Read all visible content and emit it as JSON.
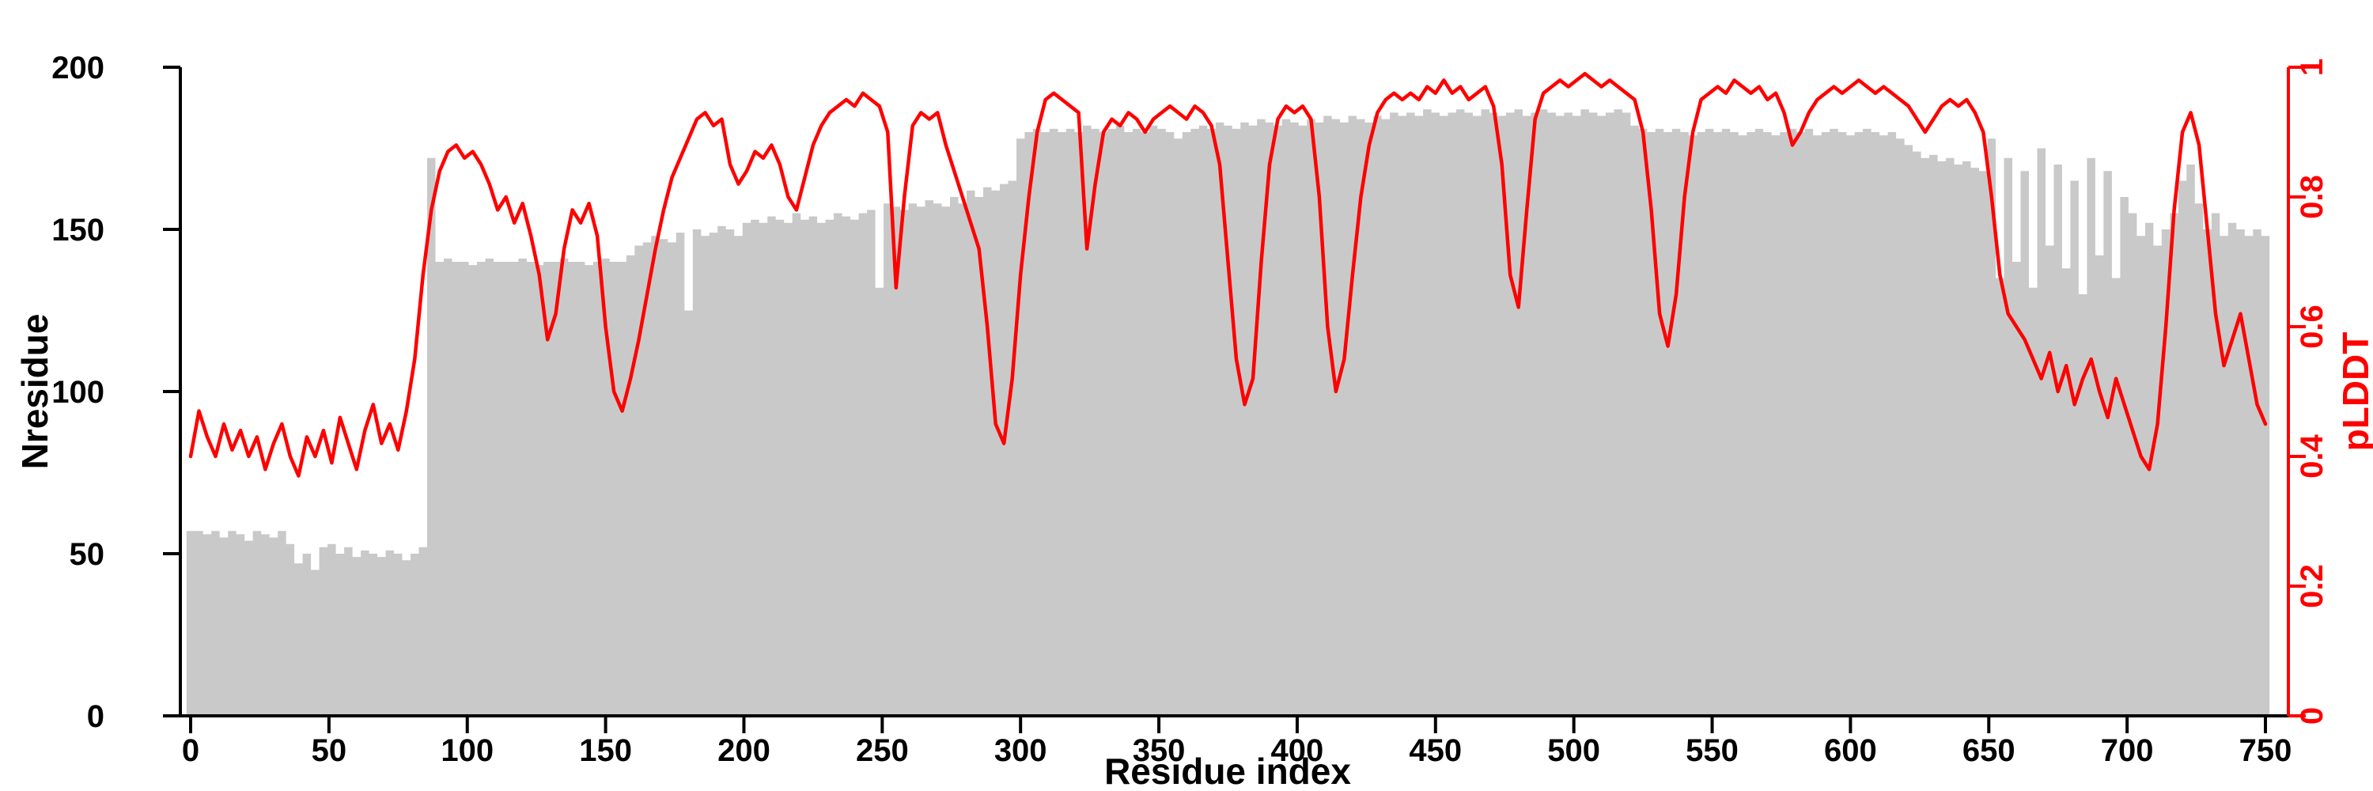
{
  "figure": {
    "background": "#ffffff",
    "bar_color": "#c9c9c9",
    "line_color": "#ff0000",
    "axis_color": "#000000"
  },
  "chart_data": {
    "type": "line",
    "title": "",
    "xlabel": "Residue index",
    "ylabel_left": "Nresidue",
    "ylabel_right": "pLDDT",
    "xlim": [
      0,
      750
    ],
    "ylim_left": [
      0,
      200
    ],
    "ylim_right": [
      0,
      1
    ],
    "grid": false,
    "legend": "none",
    "x_ticks": [
      0,
      50,
      100,
      150,
      200,
      250,
      300,
      350,
      400,
      450,
      500,
      550,
      600,
      650,
      700,
      750
    ],
    "y_ticks_left": [
      0,
      50,
      100,
      150,
      200
    ],
    "y_ticks_right": [
      0,
      0.2,
      0.4,
      0.6,
      0.8,
      1
    ],
    "x_step": 3,
    "x": [
      0,
      3,
      6,
      9,
      12,
      15,
      18,
      21,
      24,
      27,
      30,
      33,
      36,
      39,
      42,
      45,
      48,
      51,
      54,
      57,
      60,
      63,
      66,
      69,
      72,
      75,
      78,
      81,
      84,
      87,
      90,
      93,
      96,
      99,
      102,
      105,
      108,
      111,
      114,
      117,
      120,
      123,
      126,
      129,
      132,
      135,
      138,
      141,
      144,
      147,
      150,
      153,
      156,
      159,
      162,
      165,
      168,
      171,
      174,
      177,
      180,
      183,
      186,
      189,
      192,
      195,
      198,
      201,
      204,
      207,
      210,
      213,
      216,
      219,
      222,
      225,
      228,
      231,
      234,
      237,
      240,
      243,
      246,
      249,
      252,
      255,
      258,
      261,
      264,
      267,
      270,
      273,
      276,
      279,
      282,
      285,
      288,
      291,
      294,
      297,
      300,
      303,
      306,
      309,
      312,
      315,
      318,
      321,
      324,
      327,
      330,
      333,
      336,
      339,
      342,
      345,
      348,
      351,
      354,
      357,
      360,
      363,
      366,
      369,
      372,
      375,
      378,
      381,
      384,
      387,
      390,
      393,
      396,
      399,
      402,
      405,
      408,
      411,
      414,
      417,
      420,
      423,
      426,
      429,
      432,
      435,
      438,
      441,
      444,
      447,
      450,
      453,
      456,
      459,
      462,
      465,
      468,
      471,
      474,
      477,
      480,
      483,
      486,
      489,
      492,
      495,
      498,
      501,
      504,
      507,
      510,
      513,
      516,
      519,
      522,
      525,
      528,
      531,
      534,
      537,
      540,
      543,
      546,
      549,
      552,
      555,
      558,
      561,
      564,
      567,
      570,
      573,
      576,
      579,
      582,
      585,
      588,
      591,
      594,
      597,
      600,
      603,
      606,
      609,
      612,
      615,
      618,
      621,
      624,
      627,
      630,
      633,
      636,
      639,
      642,
      645,
      648,
      651,
      654,
      657,
      660,
      663,
      666,
      669,
      672,
      675,
      678,
      681,
      684,
      687,
      690,
      693,
      696,
      699,
      702,
      705,
      708,
      711,
      714,
      717,
      720,
      723,
      726,
      729,
      732,
      735,
      738,
      741,
      744,
      747,
      750
    ],
    "series": [
      {
        "name": "Nresidue",
        "type": "bar",
        "axis": "left",
        "color": "#c9c9c9",
        "values": [
          57,
          57,
          56,
          57,
          55,
          57,
          56,
          54,
          57,
          56,
          55,
          57,
          53,
          47,
          50,
          45,
          52,
          53,
          50,
          52,
          49,
          51,
          50,
          49,
          51,
          50,
          48,
          50,
          52,
          172,
          140,
          141,
          140,
          140,
          139,
          140,
          141,
          140,
          140,
          140,
          141,
          140,
          139,
          140,
          140,
          141,
          140,
          140,
          139,
          140,
          141,
          140,
          140,
          142,
          145,
          146,
          148,
          147,
          146,
          149,
          125,
          150,
          148,
          149,
          151,
          150,
          148,
          152,
          153,
          152,
          154,
          153,
          152,
          155,
          153,
          154,
          152,
          153,
          155,
          154,
          153,
          155,
          156,
          132,
          158,
          157,
          156,
          158,
          157,
          159,
          158,
          157,
          160,
          158,
          162,
          160,
          163,
          162,
          164,
          165,
          178,
          180,
          181,
          180,
          181,
          180,
          181,
          180,
          182,
          181,
          180,
          181,
          182,
          180,
          181,
          180,
          182,
          181,
          180,
          178,
          180,
          181,
          182,
          181,
          183,
          182,
          181,
          183,
          182,
          184,
          183,
          182,
          184,
          183,
          182,
          184,
          183,
          185,
          184,
          183,
          185,
          184,
          183,
          185,
          184,
          186,
          185,
          186,
          185,
          187,
          186,
          185,
          186,
          187,
          186,
          185,
          187,
          186,
          185,
          186,
          187,
          185,
          186,
          187,
          186,
          185,
          186,
          185,
          187,
          186,
          185,
          186,
          187,
          186,
          182,
          181,
          180,
          181,
          180,
          181,
          180,
          179,
          180,
          181,
          180,
          181,
          180,
          179,
          180,
          181,
          180,
          179,
          180,
          181,
          180,
          181,
          179,
          180,
          181,
          180,
          179,
          180,
          181,
          180,
          179,
          180,
          178,
          176,
          174,
          172,
          173,
          171,
          172,
          170,
          171,
          169,
          168,
          178,
          135,
          172,
          140,
          168,
          132,
          175,
          145,
          170,
          138,
          165,
          130,
          172,
          142,
          168,
          135,
          160,
          155,
          148,
          152,
          145,
          150,
          155,
          165,
          170,
          158,
          150,
          155,
          148,
          152,
          150,
          148,
          150,
          148
        ]
      },
      {
        "name": "pLDDT",
        "type": "line",
        "axis": "right",
        "color": "#ff0000",
        "values": [
          0.4,
          0.47,
          0.43,
          0.4,
          0.45,
          0.41,
          0.44,
          0.4,
          0.43,
          0.38,
          0.42,
          0.45,
          0.4,
          0.37,
          0.43,
          0.4,
          0.44,
          0.39,
          0.46,
          0.42,
          0.38,
          0.44,
          0.48,
          0.42,
          0.45,
          0.41,
          0.47,
          0.55,
          0.68,
          0.78,
          0.84,
          0.87,
          0.88,
          0.86,
          0.87,
          0.85,
          0.82,
          0.78,
          0.8,
          0.76,
          0.79,
          0.74,
          0.68,
          0.58,
          0.62,
          0.72,
          0.78,
          0.76,
          0.79,
          0.74,
          0.6,
          0.5,
          0.47,
          0.52,
          0.58,
          0.65,
          0.72,
          0.78,
          0.83,
          0.86,
          0.89,
          0.92,
          0.93,
          0.91,
          0.92,
          0.85,
          0.82,
          0.84,
          0.87,
          0.86,
          0.88,
          0.85,
          0.8,
          0.78,
          0.83,
          0.88,
          0.91,
          0.93,
          0.94,
          0.95,
          0.94,
          0.96,
          0.95,
          0.94,
          0.9,
          0.66,
          0.8,
          0.91,
          0.93,
          0.92,
          0.93,
          0.88,
          0.84,
          0.8,
          0.76,
          0.72,
          0.6,
          0.45,
          0.42,
          0.52,
          0.68,
          0.8,
          0.9,
          0.95,
          0.96,
          0.95,
          0.94,
          0.93,
          0.72,
          0.82,
          0.9,
          0.92,
          0.91,
          0.93,
          0.92,
          0.9,
          0.92,
          0.93,
          0.94,
          0.93,
          0.92,
          0.94,
          0.93,
          0.91,
          0.85,
          0.7,
          0.55,
          0.48,
          0.52,
          0.7,
          0.85,
          0.92,
          0.94,
          0.93,
          0.94,
          0.92,
          0.8,
          0.6,
          0.5,
          0.55,
          0.68,
          0.8,
          0.88,
          0.93,
          0.95,
          0.96,
          0.95,
          0.96,
          0.95,
          0.97,
          0.96,
          0.98,
          0.96,
          0.97,
          0.95,
          0.96,
          0.97,
          0.94,
          0.85,
          0.68,
          0.63,
          0.78,
          0.92,
          0.96,
          0.97,
          0.98,
          0.97,
          0.98,
          0.99,
          0.98,
          0.97,
          0.98,
          0.97,
          0.96,
          0.95,
          0.9,
          0.78,
          0.62,
          0.57,
          0.65,
          0.8,
          0.9,
          0.95,
          0.96,
          0.97,
          0.96,
          0.98,
          0.97,
          0.96,
          0.97,
          0.95,
          0.96,
          0.93,
          0.88,
          0.9,
          0.93,
          0.95,
          0.96,
          0.97,
          0.96,
          0.97,
          0.98,
          0.97,
          0.96,
          0.97,
          0.96,
          0.95,
          0.94,
          0.92,
          0.9,
          0.92,
          0.94,
          0.95,
          0.94,
          0.95,
          0.93,
          0.9,
          0.8,
          0.68,
          0.62,
          0.6,
          0.58,
          0.55,
          0.52,
          0.56,
          0.5,
          0.54,
          0.48,
          0.52,
          0.55,
          0.5,
          0.46,
          0.52,
          0.48,
          0.44,
          0.4,
          0.38,
          0.45,
          0.6,
          0.78,
          0.9,
          0.93,
          0.88,
          0.75,
          0.62,
          0.54,
          0.58,
          0.62,
          0.55,
          0.48,
          0.45
        ]
      }
    ]
  }
}
